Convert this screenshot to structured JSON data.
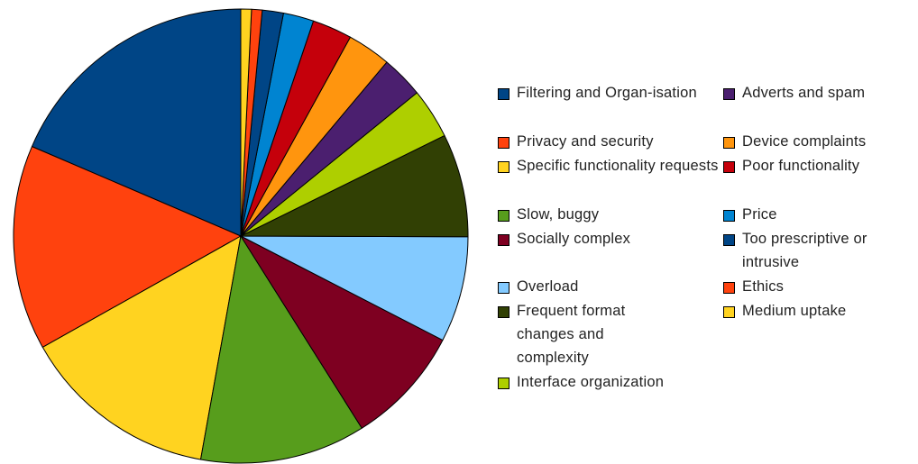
{
  "chart_data": {
    "type": "pie",
    "legend_position": "right",
    "start": "12 o'clock, counter-clockwise",
    "slices": [
      {
        "label": "Filtering and Organ-isation",
        "value": 19.7,
        "color": "#004586"
      },
      {
        "label": "Privacy and security",
        "value": 15.5,
        "color": "#ff420e"
      },
      {
        "label": "Specific functionality requests",
        "value": 14.9,
        "color": "#ffd320"
      },
      {
        "label": "Slow, buggy",
        "value": 12.5,
        "color": "#579d1c"
      },
      {
        "label": "Socially complex",
        "value": 9.0,
        "color": "#7e0021"
      },
      {
        "label": "Overload",
        "value": 8.0,
        "color": "#83caff"
      },
      {
        "label": "Frequent format changes and complexity",
        "value": 7.8,
        "color": "#314004"
      },
      {
        "label": "Interface organization",
        "value": 3.8,
        "color": "#aecf00"
      },
      {
        "label": "Adverts and spam",
        "value": 3.2,
        "color": "#4b1f6f"
      },
      {
        "label": "Device complaints",
        "value": 3.3,
        "color": "#ff950e"
      },
      {
        "label": "Poor functionality",
        "value": 3.0,
        "color": "#c5000b"
      },
      {
        "label": "Price",
        "value": 2.3,
        "color": "#0084d1"
      },
      {
        "label": "Too prescriptive or intrusive",
        "value": 1.6,
        "color": "#004586"
      },
      {
        "label": "Ethics",
        "value": 0.8,
        "color": "#ff420e"
      },
      {
        "label": "Medium uptake",
        "value": 0.8,
        "color": "#ffd320"
      }
    ]
  }
}
